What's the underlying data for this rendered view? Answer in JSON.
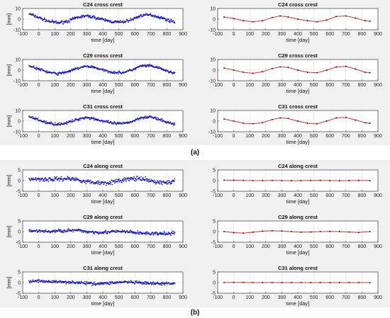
{
  "figure": {
    "label_a": "(a)",
    "label_b": "(b)",
    "colors": {
      "measured": "#1a1ad6",
      "fit": "#e0302a",
      "fit_point": "#202020",
      "axis": "#262626",
      "grid": "#cfcfcf",
      "panel_bg": "#f0f0f0"
    }
  },
  "chart_data": [
    {
      "type": "scatter",
      "title": "C24 cross crest",
      "xlabel": "time [day]",
      "ylabel": "[mm]",
      "xlim": [
        -100,
        900
      ],
      "ylim": [
        -10,
        10
      ],
      "xticks": [
        -100,
        0,
        100,
        200,
        300,
        400,
        500,
        600,
        700,
        800,
        900
      ],
      "yticks": [
        -10,
        0,
        10
      ],
      "series": [
        {
          "role": "measured",
          "noise": 1.2,
          "x": [
            -60,
            0,
            60,
            120,
            180,
            240,
            290,
            340,
            400,
            460,
            520,
            580,
            640,
            700,
            760,
            820,
            850
          ],
          "y": [
            5,
            1.5,
            -2,
            -3.5,
            -2,
            1.5,
            3,
            2,
            -0.5,
            -2.5,
            -3,
            -0.5,
            3.5,
            4,
            1.5,
            -1.5,
            -2.5
          ]
        }
      ]
    },
    {
      "type": "line",
      "title": "C24 cross crest",
      "xlabel": "time [day]",
      "ylabel": "",
      "xlim": [
        -100,
        900
      ],
      "ylim": [
        -10,
        10
      ],
      "xticks": [
        -100,
        0,
        100,
        200,
        300,
        400,
        500,
        600,
        700,
        800,
        900
      ],
      "yticks": [
        -10,
        0,
        10
      ],
      "series": [
        {
          "role": "fit",
          "x": [
            -60,
            0,
            60,
            120,
            180,
            240,
            290,
            340,
            400,
            460,
            520,
            580,
            640,
            700,
            760,
            820,
            850
          ],
          "y": [
            2,
            0.5,
            -1.5,
            -2.5,
            -1.5,
            1.5,
            3,
            2,
            0,
            -1.5,
            -2.5,
            -1,
            2.5,
            3,
            1,
            -1.5,
            -2
          ]
        }
      ]
    },
    {
      "type": "scatter",
      "title": "C29 cross crest",
      "xlabel": "time [day]",
      "ylabel": "[mm]",
      "xlim": [
        -100,
        900
      ],
      "ylim": [
        -10,
        10
      ],
      "xticks": [
        -100,
        0,
        100,
        200,
        300,
        400,
        500,
        600,
        700,
        800,
        900
      ],
      "yticks": [
        -10,
        0,
        10
      ],
      "series": [
        {
          "role": "measured",
          "noise": 1.0,
          "x": [
            -60,
            0,
            60,
            120,
            180,
            240,
            290,
            340,
            400,
            460,
            520,
            580,
            640,
            700,
            760,
            820,
            850
          ],
          "y": [
            4,
            1,
            -2,
            -3.5,
            -1.5,
            1.5,
            3.5,
            3,
            0,
            -2,
            -2.5,
            0,
            4,
            4,
            1.5,
            -2,
            -2.5
          ]
        }
      ]
    },
    {
      "type": "line",
      "title": "C29 cross crest",
      "xlabel": "time [day]",
      "ylabel": "",
      "xlim": [
        -100,
        900
      ],
      "ylim": [
        -10,
        10
      ],
      "xticks": [
        -100,
        0,
        100,
        200,
        300,
        400,
        500,
        600,
        700,
        800,
        900
      ],
      "yticks": [
        -10,
        0,
        10
      ],
      "series": [
        {
          "role": "fit",
          "x": [
            -60,
            0,
            60,
            120,
            180,
            240,
            290,
            340,
            400,
            460,
            520,
            580,
            640,
            700,
            760,
            820,
            850
          ],
          "y": [
            2,
            0,
            -2,
            -3,
            -1.5,
            1.5,
            3,
            2.5,
            0,
            -2,
            -2.5,
            0,
            3,
            3.5,
            1,
            -2,
            -2.5
          ]
        }
      ]
    },
    {
      "type": "scatter",
      "title": "C31 cross crest",
      "xlabel": "time [day]",
      "ylabel": "[mm]",
      "xlim": [
        -100,
        900
      ],
      "ylim": [
        -10,
        10
      ],
      "xticks": [
        -100,
        0,
        100,
        200,
        300,
        400,
        500,
        600,
        700,
        800,
        900
      ],
      "yticks": [
        -10,
        0,
        10
      ],
      "series": [
        {
          "role": "measured",
          "noise": 1.1,
          "x": [
            -60,
            0,
            60,
            120,
            180,
            240,
            290,
            340,
            400,
            460,
            520,
            580,
            640,
            700,
            760,
            820,
            850
          ],
          "y": [
            4,
            1,
            -2,
            -3,
            -1.5,
            1.5,
            3.5,
            2.5,
            0,
            -2,
            -2.5,
            -0.5,
            3.5,
            4,
            1,
            -2,
            -2.5
          ]
        }
      ]
    },
    {
      "type": "line",
      "title": "C31 cross crest",
      "xlabel": "time [day]",
      "ylabel": "",
      "xlim": [
        -100,
        900
      ],
      "ylim": [
        -10,
        10
      ],
      "xticks": [
        -100,
        0,
        100,
        200,
        300,
        400,
        500,
        600,
        700,
        800,
        900
      ],
      "yticks": [
        -10,
        0,
        10
      ],
      "series": [
        {
          "role": "fit",
          "x": [
            -60,
            0,
            60,
            120,
            180,
            240,
            290,
            340,
            400,
            460,
            520,
            580,
            640,
            700,
            760,
            820,
            850
          ],
          "y": [
            2,
            0,
            -2,
            -2.5,
            -1.5,
            1.5,
            3,
            2.5,
            0,
            -2,
            -2.5,
            0,
            3,
            3.5,
            1,
            -1.5,
            -2
          ]
        }
      ]
    },
    {
      "type": "scatter",
      "title": "C24 along crest",
      "xlabel": "time [day]",
      "ylabel": "[mm]",
      "xlim": [
        -100,
        900
      ],
      "ylim": [
        -5,
        5
      ],
      "xticks": [
        -100,
        0,
        100,
        200,
        300,
        400,
        500,
        600,
        700,
        800,
        900
      ],
      "yticks": [
        -5,
        0,
        5
      ],
      "series": [
        {
          "role": "measured",
          "noise": 0.9,
          "x": [
            -60,
            0,
            60,
            120,
            180,
            240,
            300,
            360,
            420,
            480,
            540,
            600,
            660,
            720,
            780,
            850
          ],
          "y": [
            0.5,
            0.8,
            0.5,
            0.8,
            1,
            0.5,
            -0.5,
            -1,
            -1,
            -0.5,
            0.5,
            1,
            0.5,
            -0.5,
            -1,
            -0.5
          ]
        }
      ]
    },
    {
      "type": "line",
      "title": "C24 along crest",
      "xlabel": "time [day]",
      "ylabel": "",
      "xlim": [
        -100,
        900
      ],
      "ylim": [
        -5,
        5
      ],
      "xticks": [
        -100,
        0,
        100,
        200,
        300,
        400,
        500,
        600,
        700,
        800,
        900
      ],
      "yticks": [
        -5,
        0,
        5
      ],
      "series": [
        {
          "role": "fit",
          "x": [
            -60,
            0,
            60,
            120,
            180,
            240,
            300,
            360,
            420,
            480,
            540,
            600,
            660,
            720,
            780,
            850
          ],
          "y": [
            0.2,
            0.2,
            0.1,
            0,
            0,
            0.1,
            0,
            -0.1,
            0,
            0.1,
            0.1,
            0,
            -0.1,
            0,
            0.1,
            0
          ]
        }
      ]
    },
    {
      "type": "scatter",
      "title": "C29 along crest",
      "xlabel": "time [day]",
      "ylabel": "[mm]",
      "xlim": [
        -100,
        900
      ],
      "ylim": [
        -5,
        5
      ],
      "xticks": [
        -100,
        0,
        100,
        200,
        300,
        400,
        500,
        600,
        700,
        800,
        900
      ],
      "yticks": [
        -5,
        0,
        5
      ],
      "series": [
        {
          "role": "measured",
          "noise": 0.7,
          "x": [
            -60,
            0,
            60,
            120,
            180,
            240,
            300,
            360,
            420,
            480,
            540,
            600,
            660,
            720,
            780,
            850
          ],
          "y": [
            0.5,
            0.3,
            0,
            0.3,
            0.5,
            0.5,
            0,
            -0.3,
            -0.3,
            0,
            0,
            -0.5,
            -0.8,
            -1,
            -1,
            -0.8
          ]
        }
      ]
    },
    {
      "type": "line",
      "title": "C29 along crest",
      "xlabel": "time [day]",
      "ylabel": "",
      "xlim": [
        -100,
        900
      ],
      "ylim": [
        -5,
        5
      ],
      "xticks": [
        -100,
        0,
        100,
        200,
        300,
        400,
        500,
        600,
        700,
        800,
        900
      ],
      "yticks": [
        -5,
        0,
        5
      ],
      "series": [
        {
          "role": "fit",
          "x": [
            -60,
            0,
            60,
            120,
            180,
            240,
            300,
            360,
            420,
            480,
            540,
            600,
            660,
            720,
            780,
            850
          ],
          "y": [
            0,
            -0.5,
            -0.7,
            -0.3,
            0.2,
            0.4,
            0.3,
            0,
            -0.3,
            -0.2,
            0,
            0.1,
            0,
            -0.2,
            -0.4,
            0
          ]
        }
      ]
    },
    {
      "type": "scatter",
      "title": "C31 along crest",
      "xlabel": "time [day]",
      "ylabel": "[mm]",
      "xlim": [
        -100,
        900
      ],
      "ylim": [
        -5,
        5
      ],
      "xticks": [
        -100,
        0,
        100,
        200,
        300,
        400,
        500,
        600,
        700,
        800,
        900
      ],
      "yticks": [
        -5,
        0,
        5
      ],
      "series": [
        {
          "role": "measured",
          "noise": 0.6,
          "x": [
            -60,
            0,
            60,
            120,
            180,
            240,
            300,
            360,
            420,
            480,
            540,
            600,
            660,
            720,
            780,
            850
          ],
          "y": [
            0.5,
            0.8,
            0.5,
            0.3,
            0.3,
            0,
            -0.3,
            -0.5,
            -0.3,
            0,
            0.3,
            0,
            -0.3,
            -0.5,
            -0.5,
            -0.3
          ]
        }
      ]
    },
    {
      "type": "line",
      "title": "C31 along crest",
      "xlabel": "time [day]",
      "ylabel": "",
      "xlim": [
        -100,
        900
      ],
      "ylim": [
        -5,
        5
      ],
      "xticks": [
        -100,
        0,
        100,
        200,
        300,
        400,
        500,
        600,
        700,
        800,
        900
      ],
      "yticks": [
        -5,
        0,
        5
      ],
      "series": [
        {
          "role": "fit",
          "x": [
            -60,
            0,
            60,
            120,
            180,
            240,
            300,
            360,
            420,
            480,
            540,
            600,
            660,
            720,
            780,
            850
          ],
          "y": [
            0,
            0.1,
            0.1,
            0,
            0,
            0,
            0,
            0,
            0,
            0,
            0,
            0,
            0,
            0,
            0,
            0
          ]
        }
      ]
    }
  ]
}
